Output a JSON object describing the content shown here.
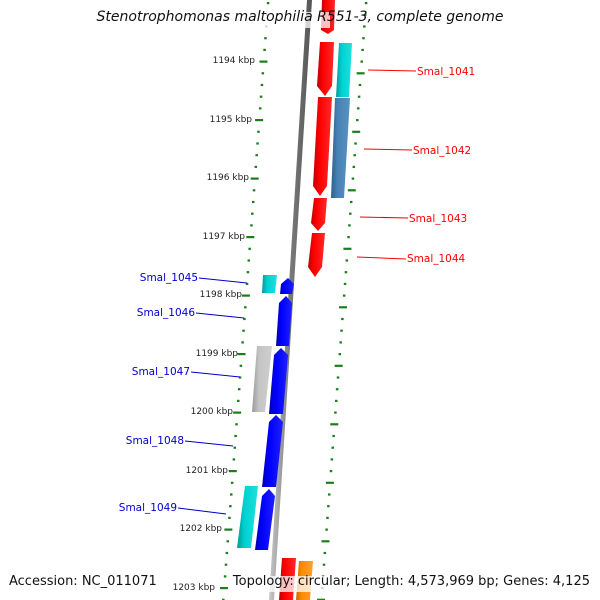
{
  "title": "Stenotrophomonas maltophilia R551-3, complete genome",
  "footer": {
    "accession": "Accession: NC_011071",
    "summary": "Topology: circular; Length: 4,573,969 bp; Genes: 4,125"
  },
  "ruler": {
    "ticks": [
      "1194 kbp",
      "1195 kbp",
      "1196 kbp",
      "1197 kbp",
      "1198 kbp",
      "1199 kbp",
      "1200 kbp",
      "1201 kbp",
      "1202 kbp",
      "1203 kbp"
    ]
  },
  "colors": {
    "forward_label": "#ff0000",
    "reverse_label": "#0000cc",
    "ruler": "#1a7f1a",
    "backbone": "#8a8a8a",
    "cds_red": "#ff0000",
    "cds_blue": "#0000ff",
    "cds_cyan": "#00cccc",
    "cds_steel": "#4682b4",
    "cds_gray": "#b8b8b8",
    "cds_orange": "#ff8c00"
  },
  "genes": {
    "forward": [
      {
        "label": "Smal_1041"
      },
      {
        "label": "Smal_1042"
      },
      {
        "label": "Smal_1043"
      },
      {
        "label": "Smal_1044"
      }
    ],
    "reverse": [
      {
        "label": "Smal_1045"
      },
      {
        "label": "Smal_1046"
      },
      {
        "label": "Smal_1047"
      },
      {
        "label": "Smal_1048"
      },
      {
        "label": "Smal_1049"
      }
    ]
  }
}
